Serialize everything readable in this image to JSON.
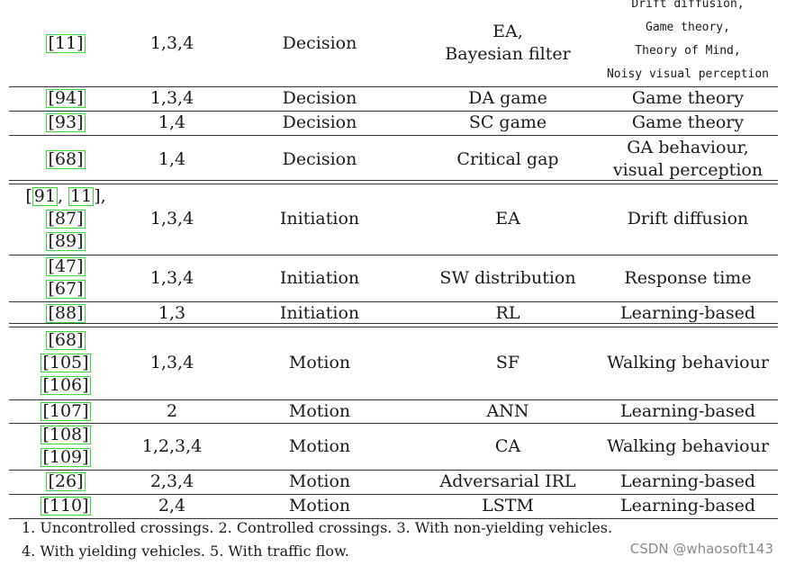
{
  "table": {
    "rows": [
      {
        "refs": [
          [
            "11"
          ]
        ],
        "conditions": "1,3,4",
        "stage": "Decision",
        "method": [
          "EA,",
          "Bayesian filter"
        ],
        "paradigm": [
          "Drift diffusion,",
          "Game theory,",
          "Theory of Mind,",
          "Noisy visual perception"
        ],
        "paradigm_small": true
      },
      {
        "refs": [
          [
            "94"
          ]
        ],
        "conditions": "1,3,4",
        "stage": "Decision",
        "method": [
          "DA game"
        ],
        "paradigm": [
          "Game theory"
        ]
      },
      {
        "refs": [
          [
            "93"
          ]
        ],
        "conditions": "1,4",
        "stage": "Decision",
        "method": [
          "SC game"
        ],
        "paradigm": [
          "Game theory"
        ]
      },
      {
        "refs": [
          [
            "68"
          ]
        ],
        "conditions": "1,4",
        "stage": "Decision",
        "method": [
          "Critical gap"
        ],
        "paradigm": [
          "GA behaviour,",
          "visual perception"
        ]
      },
      {
        "refs": [
          [
            "91",
            "11"
          ],
          [
            "87"
          ],
          [
            "89"
          ]
        ],
        "conditions": "1,3,4",
        "stage": "Initiation",
        "method": [
          "EA"
        ],
        "paradigm": [
          "Drift diffusion"
        ]
      },
      {
        "refs": [
          [
            "47"
          ],
          [
            "67"
          ]
        ],
        "conditions": "1,3,4",
        "stage": "Initiation",
        "method": [
          "SW distribution"
        ],
        "paradigm": [
          "Response time"
        ]
      },
      {
        "refs": [
          [
            "88"
          ]
        ],
        "conditions": "1,3",
        "stage": "Initiation",
        "method": [
          "RL"
        ],
        "paradigm": [
          "Learning-based"
        ]
      },
      {
        "refs": [
          [
            "68"
          ],
          [
            "105"
          ],
          [
            "106"
          ]
        ],
        "conditions": "1,3,4",
        "stage": "Motion",
        "method": [
          "SF"
        ],
        "paradigm": [
          "Walking behaviour"
        ]
      },
      {
        "refs": [
          [
            "107"
          ]
        ],
        "conditions": "2",
        "stage": "Motion",
        "method": [
          "ANN"
        ],
        "paradigm": [
          "Learning-based"
        ]
      },
      {
        "refs": [
          [
            "108"
          ],
          [
            "109"
          ]
        ],
        "conditions": "1,2,3,4",
        "stage": "Motion",
        "method": [
          "CA"
        ],
        "paradigm": [
          "Walking behaviour"
        ]
      },
      {
        "refs": [
          [
            "26"
          ]
        ],
        "conditions": "2,3,4",
        "stage": "Motion",
        "method": [
          "Adversarial IRL"
        ],
        "paradigm": [
          "Learning-based"
        ]
      },
      {
        "refs": [
          [
            "110"
          ]
        ],
        "conditions": "2,4",
        "stage": "Motion",
        "method": [
          "LSTM"
        ],
        "paradigm": [
          "Learning-based"
        ]
      }
    ],
    "footnotes": [
      "1. Uncontrolled crossings. 2. Controlled crossings. 3. With non-yielding vehicles.",
      "4. With yielding vehicles. 5. With traffic flow."
    ],
    "ref_border_color": "#33dd33"
  },
  "watermark": "CSDN @whaosoft143"
}
